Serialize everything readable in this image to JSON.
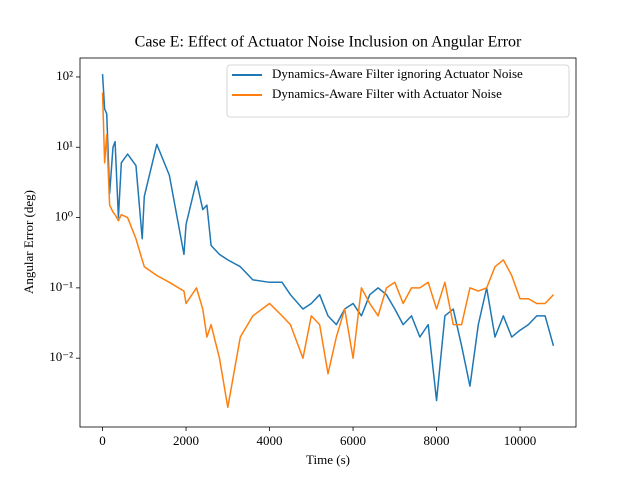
{
  "chart_data": {
    "type": "line",
    "title": "Case E: Effect of Actuator Noise Inclusion on Angular Error",
    "x_label": "Time (s)",
    "y_label": "Angular Error (deg)",
    "x": [
      0,
      50,
      100,
      170,
      250,
      300,
      380,
      450,
      600,
      800,
      950,
      1000,
      1300,
      1600,
      1950,
      2000,
      2250,
      2400,
      2500,
      2600,
      2800,
      3000,
      3300,
      3600,
      4000,
      4300,
      4500,
      4800,
      5000,
      5200,
      5400,
      5600,
      5800,
      6000,
      6200,
      6400,
      6600,
      6800,
      7000,
      7200,
      7400,
      7600,
      7800,
      8000,
      8200,
      8400,
      8600,
      8800,
      9000,
      9200,
      9400,
      9600,
      9800,
      10000,
      10200,
      10400,
      10600,
      10800
    ],
    "series": [
      {
        "name": "Dynamics-Aware Filter ignoring Actuator Noise",
        "color": "#1f77b4",
        "values": [
          110,
          35,
          30,
          2.2,
          10,
          12,
          1.0,
          6,
          8,
          5.5,
          0.5,
          2,
          11,
          4,
          0.3,
          0.8,
          3.3,
          1.3,
          1.5,
          0.4,
          0.3,
          0.25,
          0.2,
          0.13,
          0.12,
          0.12,
          0.08,
          0.05,
          0.06,
          0.08,
          0.04,
          0.03,
          0.05,
          0.06,
          0.04,
          0.08,
          0.1,
          0.08,
          0.05,
          0.03,
          0.04,
          0.02,
          0.03,
          0.0025,
          0.04,
          0.05,
          0.015,
          0.004,
          0.03,
          0.1,
          0.02,
          0.04,
          0.02,
          0.025,
          0.03,
          0.04,
          0.04,
          0.015
        ]
      },
      {
        "name": "Dynamics-Aware Filter with Actuator Noise",
        "color": "#ff7f0e",
        "values": [
          60,
          6,
          15,
          1.5,
          1.2,
          1.1,
          0.9,
          1.1,
          1.0,
          0.5,
          0.25,
          0.2,
          0.15,
          0.12,
          0.09,
          0.06,
          0.1,
          0.05,
          0.02,
          0.03,
          0.01,
          0.002,
          0.02,
          0.04,
          0.06,
          0.04,
          0.03,
          0.01,
          0.04,
          0.03,
          0.006,
          0.02,
          0.05,
          0.01,
          0.1,
          0.06,
          0.04,
          0.1,
          0.12,
          0.06,
          0.1,
          0.1,
          0.12,
          0.05,
          0.12,
          0.03,
          0.03,
          0.1,
          0.09,
          0.1,
          0.2,
          0.25,
          0.15,
          0.07,
          0.07,
          0.06,
          0.06,
          0.08
        ]
      }
    ],
    "xlim": [
      -540,
      11340
    ],
    "ylim": [
      0.00105,
      186
    ],
    "xticks": [
      0,
      2000,
      4000,
      6000,
      8000,
      10000
    ],
    "yticks": [
      {
        "value": 0.01,
        "label": "10⁻²"
      },
      {
        "value": 0.1,
        "label": "10⁻¹"
      },
      {
        "value": 1,
        "label": "10⁰"
      },
      {
        "value": 10,
        "label": "10¹"
      },
      {
        "value": 100,
        "label": "10²"
      }
    ],
    "y_scale": "log",
    "legend": "upper right"
  }
}
